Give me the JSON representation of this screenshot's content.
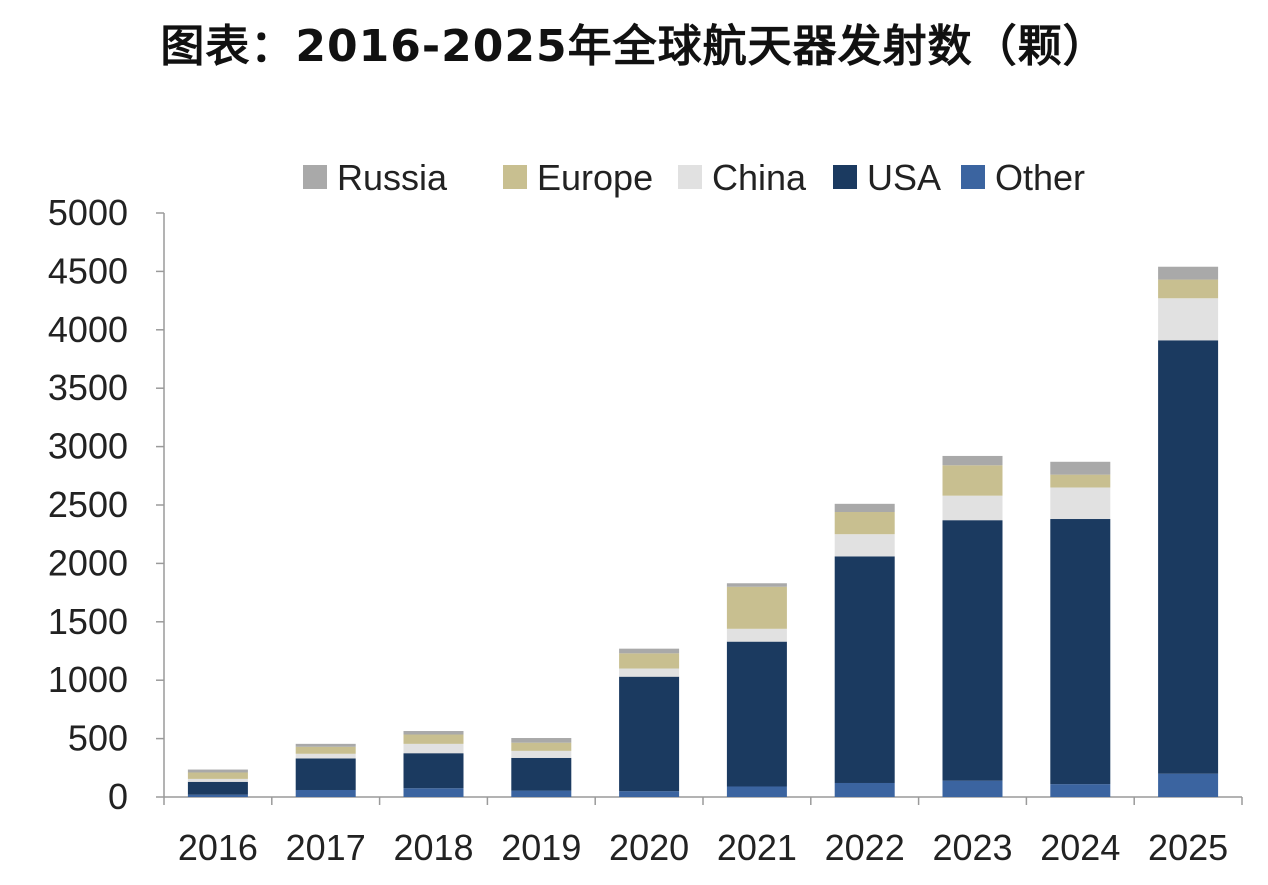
{
  "title": "图表：2016-2025年全球航天器发射数（颗）",
  "colors": {
    "Russia": "#a9a9a9",
    "Europe": "#c8bf90",
    "China": "#e1e1e1",
    "USA": "#1b3a60",
    "Other": "#3b64a0",
    "axis": "#9a9a9a"
  },
  "chart_data": {
    "type": "bar",
    "stacked": true,
    "categories": [
      "2016",
      "2017",
      "2018",
      "2019",
      "2020",
      "2021",
      "2022",
      "2023",
      "2024",
      "2025"
    ],
    "series": [
      {
        "name": "Other",
        "values": [
          20,
          60,
          75,
          55,
          50,
          90,
          120,
          140,
          110,
          200
        ]
      },
      {
        "name": "USA",
        "values": [
          110,
          270,
          300,
          280,
          980,
          1240,
          1940,
          2230,
          2270,
          3710
        ]
      },
      {
        "name": "China",
        "values": [
          25,
          40,
          80,
          60,
          70,
          110,
          190,
          210,
          270,
          360
        ]
      },
      {
        "name": "Europe",
        "values": [
          55,
          60,
          80,
          70,
          130,
          360,
          190,
          260,
          110,
          160
        ]
      },
      {
        "name": "Russia",
        "values": [
          25,
          25,
          30,
          40,
          40,
          30,
          70,
          80,
          110,
          110
        ]
      }
    ],
    "legend_order": [
      "Russia",
      "Europe",
      "China",
      "USA",
      "Other"
    ],
    "legend_position": "top",
    "ylim": [
      0,
      5000
    ],
    "yticks": [
      "0",
      "500",
      "1000",
      "1500",
      "2000",
      "2500",
      "3000",
      "3500",
      "4000",
      "4500",
      "5000"
    ],
    "grid": false,
    "xlabel": "",
    "ylabel": ""
  }
}
